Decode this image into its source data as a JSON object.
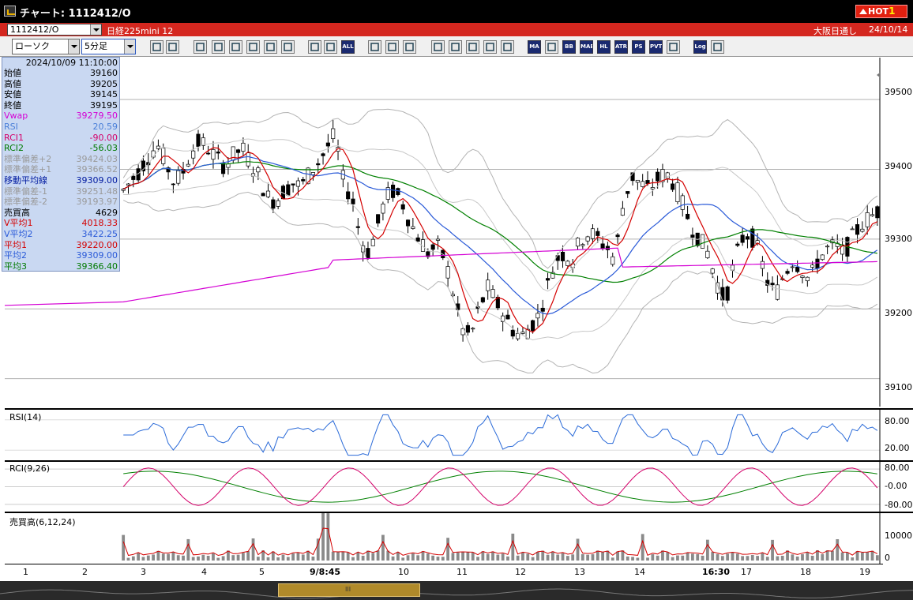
{
  "window": {
    "title": "チャート: 1112412/O",
    "hot_label": "HOT",
    "hot_number": "1"
  },
  "infobar": {
    "symbol": "1112412/O",
    "contract": "日経225mini 12",
    "session": "大阪日通し",
    "date": "24/10/14"
  },
  "toolbar": {
    "chart_type": "ローソク",
    "period": "5分足",
    "text_buttons": [
      "ALL",
      "MA",
      "BB",
      "MAE",
      "HL",
      "ATR",
      "PS",
      "PVT",
      "Log"
    ]
  },
  "data_window": {
    "datetime": "2024/10/09  11:10:00",
    "rows": [
      {
        "label": "始値",
        "value": "39160",
        "color": "#000000"
      },
      {
        "label": "高値",
        "value": "39205",
        "color": "#000000"
      },
      {
        "label": "安値",
        "value": "39145",
        "color": "#000000"
      },
      {
        "label": "終値",
        "value": "39195",
        "color": "#000000"
      },
      {
        "label": "Vwap",
        "value": "39279.50",
        "color": "#d400d4"
      },
      {
        "label": "RSI",
        "value": "20.59",
        "color": "#4a7fd8"
      },
      {
        "label": "RCI1",
        "value": "-90.00",
        "color": "#d4006a"
      },
      {
        "label": "RCI2",
        "value": "-56.03",
        "color": "#007a00"
      },
      {
        "label": "標準偏差+2",
        "value": "39424.03",
        "color": "#9a9a9a"
      },
      {
        "label": "標準偏差+1",
        "value": "39366.52",
        "color": "#9a9a9a"
      },
      {
        "label": "移動平均線",
        "value": "39309.00",
        "color": "#001aa0"
      },
      {
        "label": "標準偏差-1",
        "value": "39251.48",
        "color": "#9a9a9a"
      },
      {
        "label": "標準偏差-2",
        "value": "39193.97",
        "color": "#9a9a9a"
      },
      {
        "label": "売買高",
        "value": "4629",
        "color": "#000000"
      },
      {
        "label": "V平均1",
        "value": "4018.33",
        "color": "#d40000"
      },
      {
        "label": "V平均2",
        "value": "3422.25",
        "color": "#2a5ad8"
      },
      {
        "label": "平均1",
        "value": "39220.00",
        "color": "#d40000"
      },
      {
        "label": "平均2",
        "value": "39309.00",
        "color": "#2a5ad8"
      },
      {
        "label": "平均3",
        "value": "39366.40",
        "color": "#007a00"
      }
    ]
  },
  "panels": {
    "price": {
      "scale": [
        "39500",
        "39400",
        "39300",
        "39200",
        "39100"
      ]
    },
    "rsi": {
      "label": "RSI(14)",
      "scale": [
        "80.00",
        "20.00"
      ]
    },
    "rci": {
      "label": "RCI(9,26)",
      "scale": [
        "80.00",
        "-0.00",
        "-80.00"
      ]
    },
    "volume": {
      "label": "売買高(6,12,24)",
      "scale": [
        "10000",
        "0"
      ]
    }
  },
  "xaxis": {
    "ticks": [
      {
        "label": "1",
        "bold": false
      },
      {
        "label": "2",
        "bold": false
      },
      {
        "label": "3",
        "bold": false
      },
      {
        "label": "4",
        "bold": false
      },
      {
        "label": "5",
        "bold": false
      },
      {
        "label": "9/8:45",
        "bold": true
      },
      {
        "label": "10",
        "bold": false
      },
      {
        "label": "11",
        "bold": false
      },
      {
        "label": "12",
        "bold": false
      },
      {
        "label": "13",
        "bold": false
      },
      {
        "label": "14",
        "bold": false
      },
      {
        "label": "16:30",
        "bold": true
      },
      {
        "label": "17",
        "bold": false
      },
      {
        "label": "18",
        "bold": false
      },
      {
        "label": "19",
        "bold": false
      }
    ]
  },
  "chart_data": {
    "type": "candlestick",
    "price_range": [
      39060,
      39560
    ],
    "price_axis_ticks": [
      39100,
      39200,
      39300,
      39400,
      39500
    ],
    "price_path": [
      39370,
      39385,
      39400,
      39420,
      39435,
      39410,
      39380,
      39395,
      39425,
      39440,
      39430,
      39415,
      39405,
      39420,
      39430,
      39410,
      39390,
      39360,
      39355,
      39370,
      39380,
      39375,
      39395,
      39410,
      39430,
      39450,
      39380,
      39360,
      39300,
      39280,
      39320,
      39360,
      39370,
      39350,
      39320,
      39300,
      39280,
      39290,
      39270,
      39220,
      39170,
      39160,
      39200,
      39230,
      39210,
      39190,
      39170,
      39160,
      39175,
      39190,
      39230,
      39270,
      39280,
      39270,
      39300,
      39310,
      39300,
      39290,
      39270,
      39350,
      39390,
      39380,
      39370,
      39385,
      39395,
      39380,
      39350,
      39320,
      39300,
      39280,
      39240,
      39210,
      39260,
      39300,
      39310,
      39280,
      39240,
      39220,
      39250,
      39270,
      39260,
      39240,
      39270,
      39285,
      39290,
      39280,
      39300,
      39320,
      39330,
      39340
    ],
    "rsi_axis_ticks": [
      20,
      80
    ],
    "rci_axis_ticks": [
      -80,
      0,
      80
    ],
    "volume_axis_ticks": [
      0,
      10000
    ]
  }
}
